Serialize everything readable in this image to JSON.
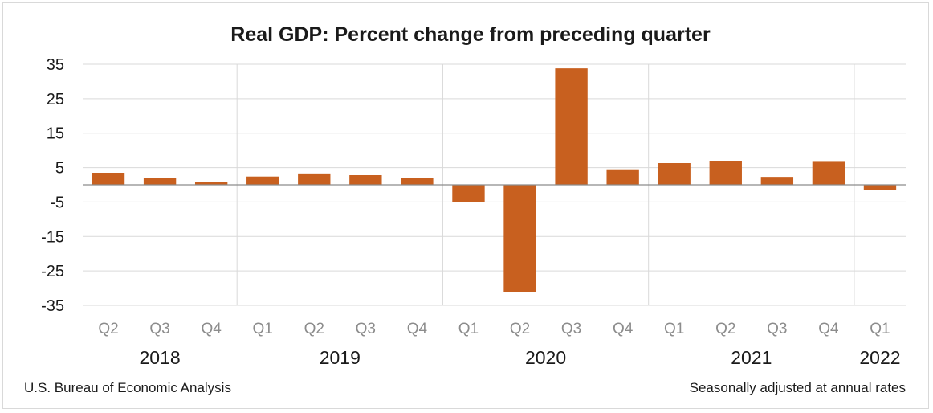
{
  "chart_data": {
    "type": "bar",
    "title": "Real GDP:  Percent change from preceding quarter",
    "categories": [
      "Q2",
      "Q3",
      "Q4",
      "Q1",
      "Q2",
      "Q3",
      "Q4",
      "Q1",
      "Q2",
      "Q3",
      "Q4",
      "Q1",
      "Q2",
      "Q3",
      "Q4",
      "Q1"
    ],
    "values": [
      3.5,
      2.0,
      0.9,
      2.4,
      3.3,
      2.8,
      1.9,
      -5.1,
      -31.2,
      33.8,
      4.5,
      6.3,
      7.0,
      2.3,
      6.9,
      -1.4
    ],
    "year_groups": [
      {
        "label": "2018",
        "start": 0,
        "end": 2
      },
      {
        "label": "2019",
        "start": 3,
        "end": 6
      },
      {
        "label": "2020",
        "start": 7,
        "end": 10
      },
      {
        "label": "2021",
        "start": 11,
        "end": 14
      },
      {
        "label": "2022",
        "start": 15,
        "end": 15
      }
    ],
    "yticks": [
      35,
      25,
      15,
      5,
      -5,
      -15,
      -25,
      -35
    ],
    "ylim": [
      -35,
      35
    ],
    "grid": true,
    "bar_color": "#c8601f",
    "grid_color": "#d9d9d9",
    "xlabel": "",
    "ylabel": "",
    "source": "U.S. Bureau of Economic Analysis",
    "note": "Seasonally adjusted  at annual rates"
  }
}
